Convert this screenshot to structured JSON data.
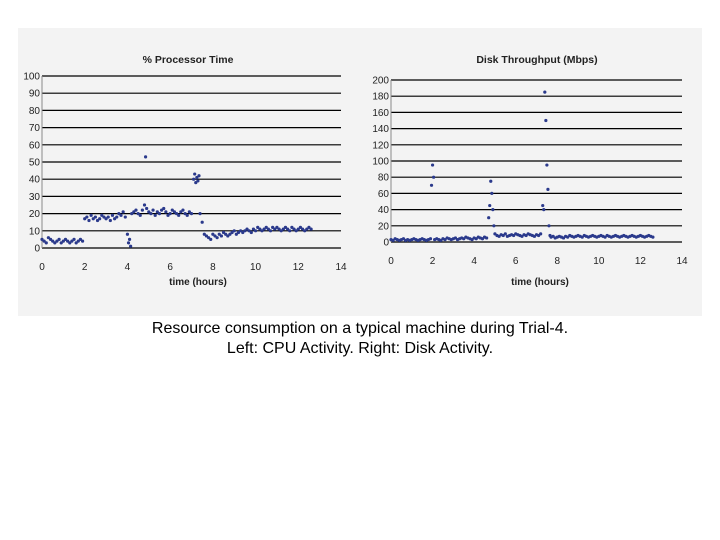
{
  "colors": {
    "points": "#2b3a8c",
    "grid": "#000000",
    "panel": "#f3f3f3"
  },
  "caption": {
    "line1": "Resource consumption on a typical machine during Trial-4.",
    "line2": "Left: CPU Activity. Right: Disk Activity."
  },
  "chart_data": [
    {
      "type": "scatter",
      "title": "% Processor Time",
      "xlabel": "time (hours)",
      "ylabel": "",
      "xlim": [
        0,
        14
      ],
      "ylim": [
        0,
        100
      ],
      "x_ticks": [
        0,
        2,
        4,
        6,
        8,
        10,
        12,
        14
      ],
      "y_ticks": [
        0,
        10,
        20,
        30,
        40,
        50,
        60,
        70,
        80,
        90,
        100
      ],
      "grid": true,
      "series": [
        {
          "x": [
            0.0,
            0.1,
            0.2,
            0.3,
            0.4,
            0.5,
            0.6,
            0.7,
            0.8,
            0.9,
            1.0,
            1.1,
            1.2,
            1.3,
            1.4,
            1.5,
            1.6,
            1.7,
            1.8,
            1.9,
            2.0,
            2.1,
            2.2,
            2.3,
            2.4,
            2.5,
            2.6,
            2.7,
            2.8,
            2.9,
            3.0,
            3.1,
            3.2,
            3.3,
            3.4,
            3.5,
            3.6,
            3.7,
            3.8,
            3.9,
            4.0,
            4.05,
            4.1,
            4.15,
            4.2,
            4.3,
            4.4,
            4.5,
            4.6,
            4.7,
            4.8,
            4.85,
            4.9,
            5.0,
            5.1,
            5.2,
            5.3,
            5.4,
            5.5,
            5.6,
            5.7,
            5.8,
            5.9,
            6.0,
            6.1,
            6.2,
            6.3,
            6.4,
            6.5,
            6.6,
            6.7,
            6.8,
            6.9,
            7.0,
            7.1,
            7.15,
            7.2,
            7.25,
            7.3,
            7.35,
            7.4,
            7.5,
            7.6,
            7.7,
            7.8,
            7.9,
            8.0,
            8.1,
            8.2,
            8.3,
            8.4,
            8.5,
            8.6,
            8.7,
            8.8,
            8.9,
            9.0,
            9.1,
            9.2,
            9.3,
            9.4,
            9.5,
            9.6,
            9.7,
            9.8,
            9.9,
            10.0,
            10.1,
            10.2,
            10.3,
            10.4,
            10.5,
            10.6,
            10.7,
            10.8,
            10.9,
            11.0,
            11.1,
            11.2,
            11.3,
            11.4,
            11.5,
            11.6,
            11.7,
            11.8,
            11.9,
            12.0,
            12.1,
            12.2,
            12.3,
            12.4,
            12.5,
            12.6
          ],
          "y": [
            5,
            4,
            3,
            6,
            5,
            4,
            3,
            4,
            5,
            3,
            4,
            5,
            4,
            3,
            4,
            5,
            3,
            4,
            5,
            4,
            17,
            18,
            16,
            19,
            17,
            18,
            16,
            17,
            19,
            18,
            17,
            18,
            16,
            19,
            17,
            18,
            20,
            19,
            21,
            18,
            8,
            3,
            5,
            1,
            20,
            21,
            22,
            20,
            19,
            22,
            25,
            53,
            23,
            21,
            20,
            22,
            19,
            21,
            20,
            22,
            23,
            21,
            19,
            20,
            22,
            21,
            20,
            19,
            21,
            22,
            20,
            19,
            21,
            20,
            40,
            43,
            38,
            41,
            39,
            42,
            20,
            15,
            8,
            7,
            6,
            5,
            8,
            7,
            6,
            8,
            7,
            9,
            8,
            7,
            8,
            9,
            10,
            8,
            9,
            10,
            9,
            10,
            11,
            10,
            9,
            11,
            10,
            12,
            11,
            10,
            11,
            12,
            11,
            10,
            12,
            11,
            12,
            11,
            10,
            11,
            12,
            11,
            10,
            12,
            11,
            10,
            11,
            12,
            11,
            10,
            11,
            12,
            11
          ]
        }
      ]
    },
    {
      "type": "scatter",
      "title": "Disk Throughput (Mbps)",
      "xlabel": "time (hours)",
      "ylabel": "",
      "xlim": [
        0,
        14
      ],
      "ylim": [
        0,
        200
      ],
      "x_ticks": [
        0,
        2,
        4,
        6,
        8,
        10,
        12,
        14
      ],
      "y_ticks": [
        0,
        20,
        40,
        60,
        80,
        100,
        120,
        140,
        160,
        180,
        200
      ],
      "grid": true,
      "series": [
        {
          "x": [
            0.0,
            0.1,
            0.2,
            0.3,
            0.4,
            0.5,
            0.6,
            0.7,
            0.8,
            0.9,
            1.0,
            1.1,
            1.2,
            1.3,
            1.4,
            1.5,
            1.6,
            1.7,
            1.8,
            1.9,
            1.95,
            2.0,
            2.05,
            2.1,
            2.2,
            2.3,
            2.4,
            2.5,
            2.6,
            2.7,
            2.8,
            2.9,
            3.0,
            3.1,
            3.2,
            3.3,
            3.4,
            3.5,
            3.6,
            3.7,
            3.8,
            3.9,
            4.0,
            4.1,
            4.2,
            4.3,
            4.4,
            4.5,
            4.6,
            4.7,
            4.75,
            4.8,
            4.85,
            4.9,
            4.95,
            5.0,
            5.1,
            5.2,
            5.3,
            5.4,
            5.5,
            5.6,
            5.7,
            5.8,
            5.9,
            6.0,
            6.1,
            6.2,
            6.3,
            6.4,
            6.5,
            6.6,
            6.7,
            6.8,
            6.9,
            7.0,
            7.1,
            7.2,
            7.3,
            7.35,
            7.4,
            7.45,
            7.5,
            7.55,
            7.6,
            7.65,
            7.7,
            7.8,
            7.9,
            8.0,
            8.1,
            8.2,
            8.3,
            8.4,
            8.5,
            8.6,
            8.7,
            8.8,
            8.9,
            9.0,
            9.1,
            9.2,
            9.3,
            9.4,
            9.5,
            9.6,
            9.7,
            9.8,
            9.9,
            10.0,
            10.1,
            10.2,
            10.3,
            10.4,
            10.5,
            10.6,
            10.7,
            10.8,
            10.9,
            11.0,
            11.1,
            11.2,
            11.3,
            11.4,
            11.5,
            11.6,
            11.7,
            11.8,
            11.9,
            12.0,
            12.1,
            12.2,
            12.3,
            12.4,
            12.5,
            12.6
          ],
          "y": [
            3,
            2,
            4,
            3,
            2,
            3,
            4,
            2,
            3,
            2,
            3,
            4,
            3,
            2,
            3,
            4,
            3,
            2,
            3,
            4,
            70,
            95,
            80,
            3,
            4,
            3,
            2,
            4,
            3,
            5,
            4,
            3,
            4,
            5,
            3,
            4,
            5,
            4,
            6,
            5,
            4,
            3,
            5,
            4,
            6,
            5,
            4,
            6,
            5,
            30,
            45,
            75,
            60,
            40,
            20,
            10,
            8,
            7,
            9,
            8,
            10,
            7,
            8,
            9,
            8,
            10,
            9,
            8,
            7,
            9,
            8,
            10,
            9,
            8,
            7,
            9,
            8,
            10,
            45,
            40,
            185,
            150,
            95,
            65,
            20,
            8,
            6,
            7,
            5,
            6,
            7,
            6,
            5,
            7,
            6,
            8,
            7,
            6,
            7,
            8,
            7,
            6,
            8,
            7,
            6,
            7,
            8,
            7,
            6,
            7,
            8,
            7,
            6,
            8,
            7,
            6,
            7,
            8,
            7,
            6,
            7,
            8,
            7,
            6,
            7,
            8,
            7,
            6,
            7,
            8,
            7,
            6,
            7,
            8,
            7,
            6
          ]
        }
      ]
    }
  ]
}
